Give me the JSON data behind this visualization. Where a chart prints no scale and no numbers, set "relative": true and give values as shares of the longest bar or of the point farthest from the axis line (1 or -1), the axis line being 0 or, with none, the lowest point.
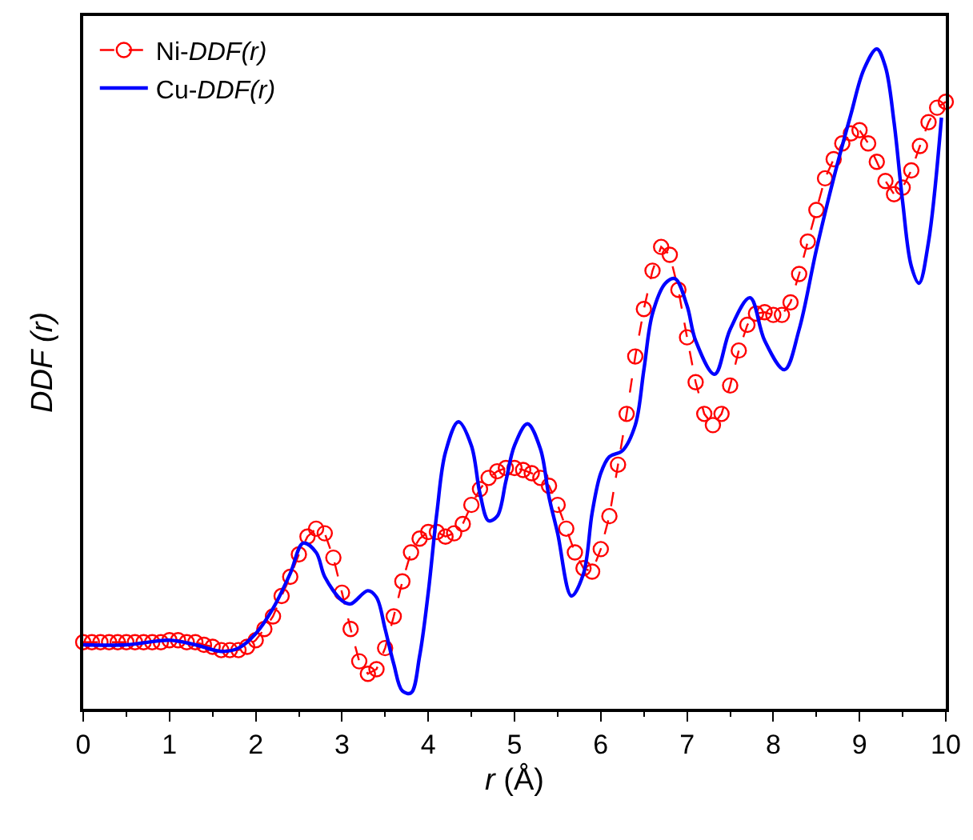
{
  "chart_data": {
    "type": "line",
    "xlabel": "r (Å)",
    "ylabel": "DDF (r)",
    "relative": true,
    "xlim": [
      0,
      10
    ],
    "xticks": [
      0,
      1,
      2,
      3,
      4,
      5,
      6,
      7,
      8,
      9,
      10
    ],
    "legend": "top left",
    "tick_labels": "x",
    "series": [
      {
        "name": "Ni-DDF(r)",
        "color": "#ff0000",
        "marker": "circle",
        "line_style": "dashed",
        "x": [
          0,
          0.1,
          0.2,
          0.3,
          0.4,
          0.5,
          0.6,
          0.7,
          0.8,
          0.9,
          1.0,
          1.1,
          1.2,
          1.3,
          1.4,
          1.5,
          1.6,
          1.7,
          1.8,
          1.9,
          2.0,
          2.1,
          2.2,
          2.3,
          2.4,
          2.5,
          2.6,
          2.7,
          2.8,
          2.9,
          3.0,
          3.1,
          3.2,
          3.3,
          3.4,
          3.5,
          3.6,
          3.7,
          3.8,
          3.9,
          4.0,
          4.1,
          4.2,
          4.3,
          4.4,
          4.5,
          4.6,
          4.7,
          4.8,
          4.9,
          5.0,
          5.1,
          5.2,
          5.3,
          5.4,
          5.5,
          5.6,
          5.7,
          5.8,
          5.9,
          6.0,
          6.1,
          6.2,
          6.3,
          6.4,
          6.5,
          6.6,
          6.7,
          6.8,
          6.9,
          7.0,
          7.1,
          7.2,
          7.3,
          7.4,
          7.5,
          7.6,
          7.7,
          7.8,
          7.9,
          8.0,
          8.1,
          8.2,
          8.3,
          8.4,
          8.5,
          8.6,
          8.7,
          8.8,
          8.9,
          9.0,
          9.1,
          9.2,
          9.3,
          9.4,
          9.5,
          9.6,
          9.7,
          9.8,
          9.9,
          10.0
        ],
        "values": [
          0.101,
          0.101,
          0.101,
          0.101,
          0.101,
          0.101,
          0.101,
          0.101,
          0.101,
          0.101,
          0.104,
          0.104,
          0.101,
          0.101,
          0.097,
          0.094,
          0.089,
          0.089,
          0.089,
          0.094,
          0.104,
          0.121,
          0.14,
          0.171,
          0.2,
          0.234,
          0.261,
          0.273,
          0.266,
          0.229,
          0.176,
          0.121,
          0.072,
          0.053,
          0.06,
          0.092,
          0.14,
          0.193,
          0.237,
          0.258,
          0.268,
          0.268,
          0.261,
          0.266,
          0.28,
          0.309,
          0.333,
          0.35,
          0.36,
          0.365,
          0.365,
          0.362,
          0.357,
          0.35,
          0.338,
          0.309,
          0.273,
          0.237,
          0.213,
          0.208,
          0.242,
          0.292,
          0.37,
          0.447,
          0.534,
          0.606,
          0.664,
          0.7,
          0.688,
          0.635,
          0.563,
          0.495,
          0.447,
          0.43,
          0.447,
          0.49,
          0.543,
          0.582,
          0.599,
          0.601,
          0.597,
          0.597,
          0.616,
          0.659,
          0.708,
          0.756,
          0.804,
          0.833,
          0.857,
          0.872,
          0.877,
          0.857,
          0.829,
          0.8,
          0.78,
          0.79,
          0.816,
          0.853,
          0.889,
          0.911,
          0.92
        ]
      },
      {
        "name": "Cu-DDF(r)",
        "color": "#0000ff",
        "marker": "none",
        "line_style": "solid",
        "x": [
          0,
          0.5,
          1.0,
          1.3,
          1.6,
          1.8,
          2.0,
          2.2,
          2.4,
          2.55,
          2.7,
          2.8,
          3.0,
          3.1,
          3.3,
          3.4,
          3.5,
          3.6,
          3.7,
          3.8,
          3.9,
          4.0,
          4.1,
          4.2,
          4.35,
          4.5,
          4.6,
          4.7,
          4.8,
          4.9,
          5.0,
          5.15,
          5.3,
          5.4,
          5.5,
          5.66,
          5.8,
          5.9,
          6.0,
          6.1,
          6.25,
          6.4,
          6.5,
          6.6,
          6.75,
          6.86,
          7.0,
          7.1,
          7.32,
          7.5,
          7.73,
          7.9,
          8.13,
          8.3,
          8.5,
          8.7,
          8.9,
          9.05,
          9.2,
          9.3,
          9.4,
          9.5,
          9.6,
          9.69,
          9.8,
          9.95
        ],
        "values": [
          0.097,
          0.097,
          0.104,
          0.097,
          0.087,
          0.092,
          0.114,
          0.152,
          0.205,
          0.251,
          0.237,
          0.2,
          0.164,
          0.159,
          0.179,
          0.169,
          0.121,
          0.068,
          0.027,
          0.024,
          0.08,
          0.176,
          0.297,
          0.389,
          0.435,
          0.399,
          0.326,
          0.285,
          0.292,
          0.345,
          0.399,
          0.432,
          0.394,
          0.321,
          0.266,
          0.171,
          0.205,
          0.297,
          0.357,
          0.382,
          0.391,
          0.43,
          0.514,
          0.599,
          0.645,
          0.652,
          0.611,
          0.558,
          0.507,
          0.575,
          0.623,
          0.558,
          0.514,
          0.575,
          0.696,
          0.804,
          0.901,
          0.969,
          1,
          0.973,
          0.889,
          0.768,
          0.671,
          0.645,
          0.708,
          0.896
        ]
      }
    ]
  }
}
